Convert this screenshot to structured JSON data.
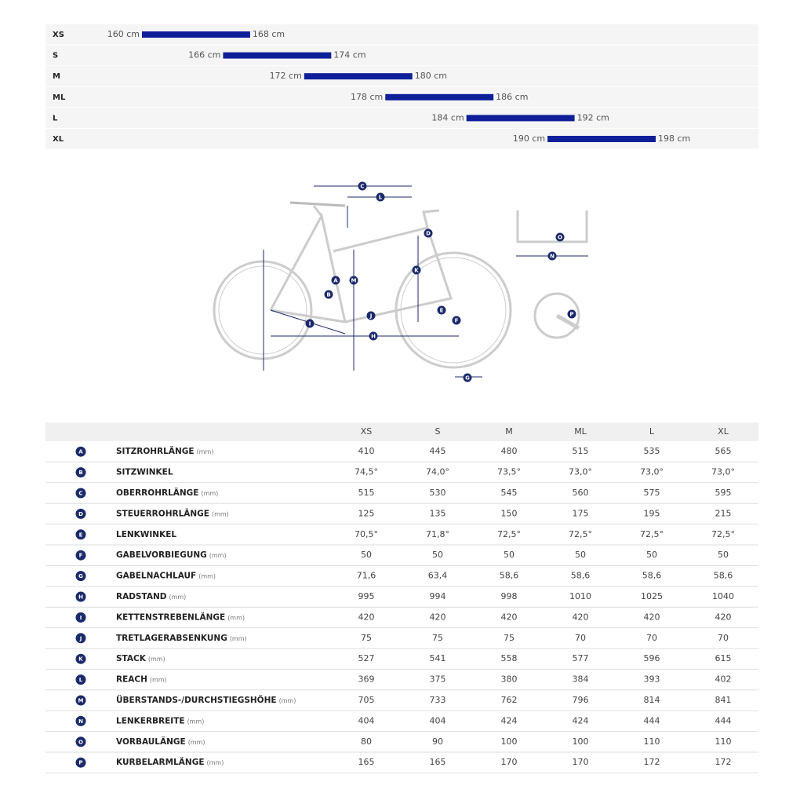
{
  "size_chart": {
    "rows": [
      {
        "size": "XS",
        "from": 160,
        "to": 168,
        "labels": [
          "160 cm",
          "168 cm"
        ]
      },
      {
        "size": "S",
        "from": 166,
        "to": 174,
        "labels": [
          "166 cm",
          "174 cm"
        ]
      },
      {
        "size": "M",
        "from": 172,
        "to": 180,
        "labels": [
          "172 cm",
          "180 cm"
        ]
      },
      {
        "size": "ML",
        "from": 178,
        "to": 186,
        "labels": [
          "178 cm",
          "186 cm"
        ]
      },
      {
        "size": "L",
        "from": 184,
        "to": 192,
        "labels": [
          "184 cm",
          "192 cm"
        ]
      },
      {
        "size": "XL",
        "from": 190,
        "to": 198,
        "labels": [
          "190 cm",
          "198 cm"
        ]
      }
    ]
  },
  "geometry": {
    "columns": [
      "XS",
      "S",
      "M",
      "ML",
      "L",
      "XL"
    ],
    "rows": [
      {
        "letter": "A",
        "name": "SITZROHRLÄNGE",
        "unit": "(mm)",
        "values": [
          "410",
          "445",
          "480",
          "515",
          "535",
          "565"
        ]
      },
      {
        "letter": "B",
        "name": "SITZWINKEL",
        "values": [
          "74,5°",
          "74,0°",
          "73,5°",
          "73,0°",
          "73,0°",
          "73,0°"
        ]
      },
      {
        "letter": "C",
        "name": "OBERROHRLÄNGE",
        "unit": "(mm)",
        "values": [
          "515",
          "530",
          "545",
          "560",
          "575",
          "595"
        ]
      },
      {
        "letter": "D",
        "name": "STEUERROHRLÄNGE",
        "unit": "(mm)",
        "values": [
          "125",
          "135",
          "150",
          "175",
          "195",
          "215"
        ]
      },
      {
        "letter": "E",
        "name": "LENKWINKEL",
        "values": [
          "70,5°",
          "71,8°",
          "72,5°",
          "72,5°",
          "72,5°",
          "72,5°"
        ]
      },
      {
        "letter": "F",
        "name": "GABELVORBIEGUNG",
        "unit": "(mm)",
        "values": [
          "50",
          "50",
          "50",
          "50",
          "50",
          "50"
        ]
      },
      {
        "letter": "G",
        "name": "GABELNACHLAUF",
        "unit": "(mm)",
        "values": [
          "71,6",
          "63,4",
          "58,6",
          "58,6",
          "58,6",
          "58,6"
        ]
      },
      {
        "letter": "H",
        "name": "RADSTAND",
        "unit": "(mm)",
        "values": [
          "995",
          "994",
          "998",
          "1010",
          "1025",
          "1040"
        ]
      },
      {
        "letter": "I",
        "name": "KETTENSTREBENLÄNGE",
        "unit": "(mm)",
        "values": [
          "420",
          "420",
          "420",
          "420",
          "420",
          "420"
        ]
      },
      {
        "letter": "J",
        "name": "TRETLAGERABSENKUNG",
        "unit": "(mm)",
        "values": [
          "75",
          "75",
          "75",
          "70",
          "70",
          "70"
        ]
      },
      {
        "letter": "K",
        "name": "STACK",
        "unit": "(mm)",
        "values": [
          "527",
          "541",
          "558",
          "577",
          "596",
          "615"
        ]
      },
      {
        "letter": "L",
        "name": "REACH",
        "unit": "(mm)",
        "values": [
          "369",
          "375",
          "380",
          "384",
          "393",
          "402"
        ]
      },
      {
        "letter": "M",
        "name": "ÜBERSTANDS-/DURCHSTIEGSHÖHE",
        "unit": "(mm)",
        "values": [
          "705",
          "733",
          "762",
          "796",
          "814",
          "841"
        ]
      },
      {
        "letter": "N",
        "name": "LENKERBREITE",
        "unit": "(mm)",
        "values": [
          "404",
          "404",
          "424",
          "424",
          "444",
          "444"
        ]
      },
      {
        "letter": "O",
        "name": "VORBAULÄNGE",
        "unit": "(mm)",
        "values": [
          "80",
          "90",
          "100",
          "100",
          "110",
          "110"
        ]
      },
      {
        "letter": "P",
        "name": "KURBELARMLÄNGE",
        "unit": "(mm)",
        "values": [
          "165",
          "165",
          "170",
          "170",
          "172",
          "172"
        ]
      }
    ]
  }
}
